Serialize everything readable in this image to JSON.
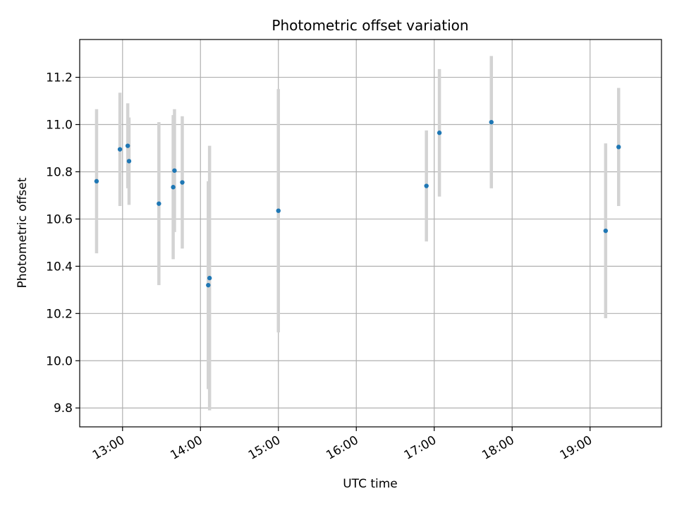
{
  "chart_data": {
    "type": "scatter",
    "title": "Photometric offset variation",
    "xlabel": "UTC time",
    "ylabel": "Photometric offset",
    "x_ticks": [
      "13:00",
      "14:00",
      "15:00",
      "16:00",
      "17:00",
      "18:00",
      "19:00"
    ],
    "y_ticks": [
      "9.8",
      "10.0",
      "10.2",
      "10.4",
      "10.6",
      "10.8",
      "11.0",
      "11.2"
    ],
    "xlim": [
      "12:27",
      "19:55"
    ],
    "ylim": [
      9.72,
      11.36
    ],
    "grid": true,
    "colors": {
      "marker": "#1f77b4",
      "errorbar": "#d3d3d3",
      "grid": "#b0b0b0"
    },
    "points": [
      {
        "time": "12:40",
        "y": 10.76,
        "err": 0.305
      },
      {
        "time": "12:58",
        "y": 10.895,
        "err": 0.24
      },
      {
        "time": "13:04",
        "y": 10.91,
        "err": 0.18
      },
      {
        "time": "13:05",
        "y": 10.845,
        "err": 0.185
      },
      {
        "time": "13:28",
        "y": 10.665,
        "err": 0.345
      },
      {
        "time": "13:39",
        "y": 10.735,
        "err": 0.305
      },
      {
        "time": "13:40",
        "y": 10.805,
        "err": 0.26
      },
      {
        "time": "13:46",
        "y": 10.755,
        "err": 0.28
      },
      {
        "time": "14:06",
        "y": 10.32,
        "err": 0.44
      },
      {
        "time": "14:07",
        "y": 10.35,
        "err": 0.56
      },
      {
        "time": "15:00",
        "y": 10.635,
        "err": 0.515
      },
      {
        "time": "16:54",
        "y": 10.74,
        "err": 0.235
      },
      {
        "time": "17:04",
        "y": 10.965,
        "err": 0.27
      },
      {
        "time": "17:44",
        "y": 11.01,
        "err": 0.28
      },
      {
        "time": "19:12",
        "y": 10.55,
        "err": 0.37
      },
      {
        "time": "19:22",
        "y": 10.905,
        "err": 0.25
      }
    ]
  }
}
